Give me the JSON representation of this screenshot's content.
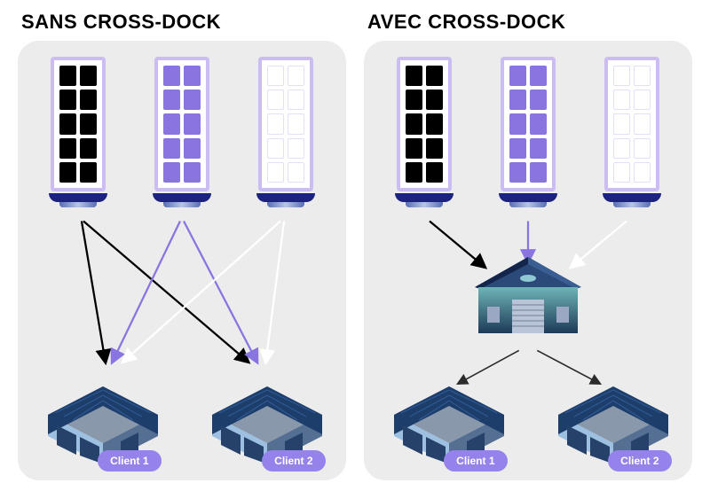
{
  "infographic": {
    "type": "comparison-diagram",
    "background": "#ffffff",
    "panel_bg": "#ececec",
    "panel_radius": 24,
    "title_fontsize": 22,
    "title_color": "#000000"
  },
  "panels": {
    "left": {
      "title": "SANS CROSS-DOCK",
      "trucks": [
        {
          "border": "#cbbcf2",
          "bg": "#ffffff",
          "cell_color": "#000000",
          "base": "#1b237d"
        },
        {
          "border": "#cbbcf2",
          "bg": "#ffffff",
          "cell_color": "#8a74e0",
          "base": "#1b237d"
        },
        {
          "border": "#cbbcf2",
          "bg": "#ffffff",
          "cell_color": "#ffffff",
          "base": "#1b237d"
        }
      ],
      "arrows": [
        {
          "from": "truck1",
          "to": "client1",
          "color": "#000000"
        },
        {
          "from": "truck1",
          "to": "client2",
          "color": "#000000"
        },
        {
          "from": "truck2",
          "to": "client1",
          "color": "#8a74e0"
        },
        {
          "from": "truck2",
          "to": "client2",
          "color": "#8a74e0"
        },
        {
          "from": "truck3",
          "to": "client1",
          "color": "#ffffff"
        },
        {
          "from": "truck3",
          "to": "client2",
          "color": "#ffffff"
        }
      ],
      "clients": [
        {
          "label": "Client 1"
        },
        {
          "label": "Client 2"
        }
      ]
    },
    "right": {
      "title": "AVEC CROSS-DOCK",
      "trucks": [
        {
          "border": "#cbbcf2",
          "bg": "#ffffff",
          "cell_color": "#000000",
          "base": "#1b237d"
        },
        {
          "border": "#cbbcf2",
          "bg": "#ffffff",
          "cell_color": "#8a74e0",
          "base": "#1b237d"
        },
        {
          "border": "#cbbcf2",
          "bg": "#ffffff",
          "cell_color": "#ffffff",
          "base": "#1b237d"
        }
      ],
      "hub": {
        "roof": "#2b4a7a",
        "roof_dark": "#13254a",
        "wall_top": "#5ea3a8",
        "wall_bottom": "#1f3e5c",
        "door": "#b9c4d8",
        "window": "#9ba8c4"
      },
      "inbound_arrows": [
        {
          "from": "truck1",
          "to": "hub",
          "color": "#000000"
        },
        {
          "from": "truck2",
          "to": "hub",
          "color": "#8a74e0"
        },
        {
          "from": "truck3",
          "to": "hub",
          "color": "#ffffff"
        }
      ],
      "outbound_arrows": [
        {
          "from": "hub",
          "to": "client1",
          "color": "#2b2b2b"
        },
        {
          "from": "hub",
          "to": "client2",
          "color": "#2b2b2b"
        }
      ],
      "clients": [
        {
          "label": "Client 1"
        },
        {
          "label": "Client 2"
        }
      ]
    }
  },
  "client_building": {
    "roof_color": "#1d3d6b",
    "roof_lines": "#2e5a94",
    "wall_light": "#9dbfe0",
    "wall_dark": "#546f91",
    "window": "#26426a",
    "floor": "#8a98ab"
  },
  "badge": {
    "bg": "#9582ea",
    "text_color": "#ffffff",
    "fontsize": 12
  },
  "arrow_style": {
    "stroke_width": 2.2,
    "head_size": 8
  }
}
